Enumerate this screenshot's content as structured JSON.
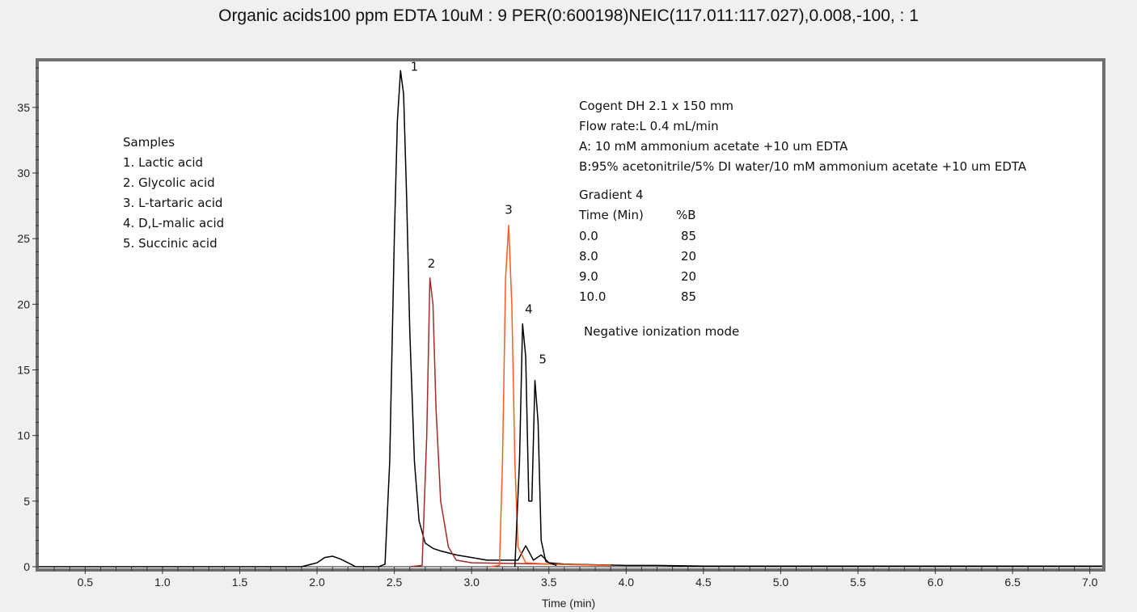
{
  "chart_data": {
    "type": "line",
    "title": "Organic acids100 ppm EDTA 10uM : 9 PER(0:600198)NEIC(117.011:117.027),0.008,-100, : 1",
    "xlabel": "Time (min)",
    "ylabel": "",
    "xlim": [
      0.2,
      7.08
    ],
    "ylim": [
      0,
      38.5
    ],
    "x_ticks": [
      "0.5",
      "1.0",
      "1.5",
      "2.0",
      "2.5",
      "3.0",
      "3.5",
      "4.0",
      "4.5",
      "5.0",
      "5.5",
      "6.0",
      "6.5",
      "7.0"
    ],
    "y_ticks": [
      "0",
      "5",
      "10",
      "15",
      "20",
      "25",
      "30",
      "35"
    ],
    "grid": false,
    "series": [
      {
        "color": "#000000",
        "x": [
          0.2,
          1.9,
          2.0,
          2.05,
          2.1,
          2.15,
          2.2,
          2.25,
          2.4,
          2.44,
          2.47,
          2.5,
          2.52,
          2.54,
          2.56,
          2.58,
          2.6,
          2.63,
          2.66,
          2.7,
          2.75,
          2.8,
          2.9,
          3.0,
          3.1,
          3.2,
          3.3,
          3.35,
          3.4,
          3.45,
          3.5,
          3.6,
          3.8,
          4.0,
          4.2,
          4.5,
          5.0,
          5.5,
          6.0,
          6.5,
          7.08
        ],
        "y": [
          0,
          0,
          0.3,
          0.7,
          0.8,
          0.6,
          0.3,
          0,
          0,
          0.2,
          8,
          25,
          34,
          37.8,
          36,
          28,
          18,
          8,
          3.5,
          1.8,
          1.4,
          1.2,
          0.9,
          0.7,
          0.5,
          0.5,
          0.5,
          1.6,
          0.5,
          0.9,
          0.3,
          0.2,
          0.15,
          0.1,
          0.1,
          0.05,
          0.05,
          0.05,
          0.05,
          0.05,
          0.05
        ]
      },
      {
        "color": "#a52a2a",
        "x": [
          2.6,
          2.68,
          2.71,
          2.73,
          2.75,
          2.77,
          2.8,
          2.85,
          2.9,
          3.0,
          3.5,
          3.9
        ],
        "y": [
          0,
          0.1,
          10,
          22,
          20,
          12,
          5,
          1.5,
          0.5,
          0.3,
          0.2,
          0.1
        ]
      },
      {
        "color": "#ff5a1f",
        "x": [
          3.12,
          3.18,
          3.2,
          3.22,
          3.24,
          3.26,
          3.28,
          3.3,
          3.35,
          3.5,
          3.9
        ],
        "y": [
          0,
          0.1,
          8,
          22,
          26,
          20,
          8,
          1.5,
          0.3,
          0.2,
          0.1
        ]
      },
      {
        "color": "#000000",
        "x": [
          3.28,
          3.31,
          3.33,
          3.35,
          3.37,
          3.39,
          3.41,
          3.43,
          3.45,
          3.48,
          3.55
        ],
        "y": [
          0,
          8,
          18.5,
          16,
          5,
          5,
          14.2,
          11,
          2,
          0.4,
          0.1
        ]
      }
    ],
    "peak_labels": [
      {
        "text": "1",
        "x": 2.63,
        "y": 37.8
      },
      {
        "text": "2",
        "x": 2.74,
        "y": 22.8
      },
      {
        "text": "3",
        "x": 3.24,
        "y": 26.9
      },
      {
        "text": "4",
        "x": 3.37,
        "y": 19.3
      },
      {
        "text": "5",
        "x": 3.46,
        "y": 15.5
      }
    ],
    "annotations": {
      "samples": [
        "Samples",
        "1. Lactic acid",
        "2. Glycolic acid",
        "3. L-tartaric acid",
        "4. D,L-malic acid",
        "5. Succinic acid"
      ],
      "conditions": [
        "Cogent DH 2.1 x 150 mm",
        "Flow rate:L 0.4 mL/min",
        "A: 10 mM ammonium acetate +10 um EDTA",
        "B:95% acetonitrile/5% DI water/10 mM ammonium acetate +10 um EDTA"
      ],
      "gradient_title": "Gradient 4",
      "gradient_header": [
        "Time (Min)",
        "%B"
      ],
      "gradient_rows": [
        [
          "0.0",
          "85"
        ],
        [
          "8.0",
          "20"
        ],
        [
          "9.0",
          "20"
        ],
        [
          "10.0",
          "85"
        ]
      ],
      "mode": "Negative ionization mode"
    }
  }
}
